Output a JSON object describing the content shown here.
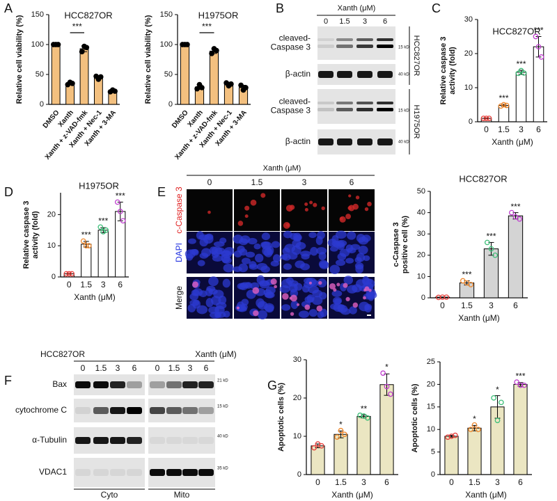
{
  "panel_labels": [
    "A",
    "B",
    "C",
    "D",
    "E",
    "F",
    "G"
  ],
  "chart_data": [
    {
      "type": "bar",
      "title": "HCC827OR",
      "ylabel": [
        "Relative cell viability (%)"
      ],
      "categories": [
        "DMSO",
        "Xanth",
        "Xanth + z-VAD-fmk",
        "Xanth + Nec-1",
        "Xanth + 3-MA"
      ],
      "values": [
        100,
        35,
        93,
        45,
        22
      ],
      "errors": [
        0,
        2,
        5,
        3,
        2
      ],
      "points": [
        [
          100,
          100,
          100
        ],
        [
          33,
          37,
          35
        ],
        [
          88,
          97,
          95
        ],
        [
          47,
          42,
          46
        ],
        [
          21,
          24,
          22
        ]
      ],
      "bracket": {
        "label": "***",
        "categories": [
          "Xanth",
          "Xanth + z-VAD-fmk"
        ]
      },
      "color": "#f3c07f",
      "point_colors": [
        "#000000"
      ],
      "rotate_labels": true,
      "ylim": [
        0,
        150
      ],
      "yticks": [
        0,
        50,
        100,
        150
      ]
    },
    {
      "type": "bar",
      "title": "H1975OR",
      "ylabel": [
        "Relative cell viability (%)"
      ],
      "categories": [
        "DMSO",
        "Xanth",
        "Xanth + z-VAD-fmk",
        "Xanth + Nec-1",
        "Xanth + 3-MA"
      ],
      "values": [
        100,
        29,
        89,
        34,
        28
      ],
      "errors": [
        0,
        4,
        4,
        3,
        4
      ],
      "points": [
        [
          100,
          100,
          100
        ],
        [
          26,
          33,
          28
        ],
        [
          85,
          93,
          90
        ],
        [
          36,
          31,
          34
        ],
        [
          32,
          24,
          28
        ]
      ],
      "bracket": {
        "label": "***",
        "categories": [
          "Xanth",
          "Xanth + z-VAD-fmk"
        ]
      },
      "color": "#f3c07f",
      "point_colors": [
        "#000000"
      ],
      "rotate_labels": true,
      "ylim": [
        0,
        150
      ],
      "yticks": [
        0,
        50,
        100,
        150
      ]
    },
    {
      "type": "bar",
      "title": "HCC827OR",
      "ylabel": [
        "Relative caspase 3",
        "activity (fold)"
      ],
      "xlabel": "Xanth (μM)",
      "categories": [
        "0",
        "1.5",
        "3",
        "6"
      ],
      "values": [
        1,
        4.8,
        14.5,
        22
      ],
      "errors": [
        0.1,
        0.3,
        0.6,
        3
      ],
      "points": [
        [
          1,
          1,
          1
        ],
        [
          4.6,
          5,
          4.8
        ],
        [
          14.2,
          15,
          14.3
        ],
        [
          25,
          22,
          19
        ]
      ],
      "annotations": [
        null,
        "***",
        "***",
        "***"
      ],
      "color": "#ffffff",
      "point_colors": [
        "#e8403c",
        "#f0882c",
        "#3cbf78",
        "#c040d0"
      ],
      "ylim": [
        0,
        30
      ],
      "yticks": [
        0,
        10,
        20,
        30
      ]
    },
    {
      "type": "bar",
      "title": "H1975OR",
      "ylabel": [
        "Relative caspase 3",
        "activity (fold)"
      ],
      "xlabel": "Xanth (μM)",
      "categories": [
        "0",
        "1.5",
        "3",
        "6"
      ],
      "values": [
        1,
        10.5,
        15,
        21
      ],
      "errors": [
        0.1,
        0.9,
        0.8,
        3
      ],
      "points": [
        [
          1,
          1,
          1
        ],
        [
          11.5,
          10,
          10
        ],
        [
          16,
          14.5,
          15
        ],
        [
          24,
          21,
          18
        ]
      ],
      "annotations": [
        null,
        "***",
        "***",
        "***"
      ],
      "color": "#ffffff",
      "point_colors": [
        "#e8403c",
        "#f0882c",
        "#3cbf78",
        "#c040d0"
      ],
      "ylim": [
        0,
        27
      ],
      "yticks": [
        0,
        10,
        20
      ]
    },
    {
      "type": "bar",
      "title": "HCC827OR",
      "ylabel": [
        "c-Caspase 3",
        "positive cell (%)"
      ],
      "xlabel": "Xanth (μM)",
      "categories": [
        "0",
        "1.5",
        "3",
        "6"
      ],
      "values": [
        0.3,
        7,
        23,
        38.5
      ],
      "errors": [
        0.1,
        1,
        3,
        1.5
      ],
      "points": [
        [
          0.2,
          0.3,
          0.3
        ],
        [
          8,
          7,
          6.2
        ],
        [
          26,
          23,
          20
        ],
        [
          40,
          38,
          37
        ]
      ],
      "annotations": [
        null,
        "***",
        "***",
        "***"
      ],
      "color": "#d4d4d4",
      "point_colors": [
        "#e8403c",
        "#f0882c",
        "#3cbf78",
        "#c040d0"
      ],
      "ylim": [
        0,
        50
      ],
      "yticks": [
        0,
        10,
        20,
        30,
        40,
        50
      ]
    },
    {
      "type": "bar",
      "ylabel": [
        "Apoptotic cells (%)"
      ],
      "xlabel": "Xanth (μM)",
      "categories": [
        "0",
        "1.5",
        "3",
        "6"
      ],
      "values": [
        7.5,
        10.5,
        15.2,
        23.5
      ],
      "errors": [
        0.5,
        0.9,
        0.4,
        2.8
      ],
      "points": [
        [
          7,
          8,
          7.5
        ],
        [
          9.8,
          11.5,
          10.5
        ],
        [
          15.5,
          15.3,
          14.8
        ],
        [
          26.5,
          23,
          21
        ]
      ],
      "annotations": [
        null,
        "*",
        "**",
        "*"
      ],
      "color": "#ebe6c2",
      "point_colors": [
        "#e8403c",
        "#f0882c",
        "#3cbf78",
        "#c040d0"
      ],
      "ylim": [
        0,
        30
      ],
      "yticks": [
        0,
        10,
        20,
        30
      ]
    },
    {
      "type": "bar",
      "ylabel": [
        "Apoptotic cells (%)"
      ],
      "xlabel": "Xanth (μM)",
      "categories": [
        "0",
        "1.5",
        "3",
        "6"
      ],
      "values": [
        8.5,
        10.3,
        15,
        20
      ],
      "errors": [
        0.2,
        0.6,
        2.5,
        0.4
      ],
      "points": [
        [
          8.3,
          8.5,
          8.7
        ],
        [
          10,
          11,
          10
        ],
        [
          17,
          12,
          16
        ],
        [
          20.5,
          19.8,
          19.8
        ]
      ],
      "annotations": [
        null,
        "*",
        "*",
        "***"
      ],
      "color": "#ebe6c2",
      "point_colors": [
        "#e8403c",
        "#f0882c",
        "#3cbf78",
        "#c040d0"
      ],
      "ylim": [
        0,
        25
      ],
      "yticks": [
        0,
        5,
        10,
        15,
        20,
        25
      ]
    }
  ],
  "blot_b": {
    "xlabel": "Xanth (μM)",
    "lanes": [
      "0",
      "1.5",
      "3",
      "6"
    ],
    "rows": [
      {
        "label": [
          "cleaved-",
          "Caspase 3"
        ],
        "kd": "15 kD"
      },
      {
        "label": [
          "β-actin"
        ],
        "kd": "40 kD"
      },
      {
        "label": [
          "cleaved-",
          "Caspase 3"
        ],
        "kd": "15 kD"
      },
      {
        "label": [
          "β-actin"
        ],
        "kd": "40 kD"
      }
    ],
    "cell_lines": [
      "HCC827OR",
      "H1975OR"
    ]
  },
  "images_e": {
    "xlabel": "Xanth (μM)",
    "columns": [
      "0",
      "1.5",
      "3",
      "6"
    ],
    "rows": [
      "c-Caspase 3",
      "DAPI",
      "Merge"
    ]
  },
  "blot_f": {
    "cell_line": "HCC827OR",
    "xlabel": "Xanth (μM)",
    "lanes": [
      "0",
      "1.5",
      "3",
      "6",
      "0",
      "1.5",
      "3",
      "6"
    ],
    "rows": [
      {
        "label": "Bax",
        "kd": "21 kD"
      },
      {
        "label": "cytochrome C",
        "kd": "15 kD"
      },
      {
        "label": "α-Tubulin",
        "kd": "40 kD"
      },
      {
        "label": "VDAC1",
        "kd": "35 kD"
      }
    ],
    "fractions": [
      "Cyto",
      "Mito"
    ]
  }
}
